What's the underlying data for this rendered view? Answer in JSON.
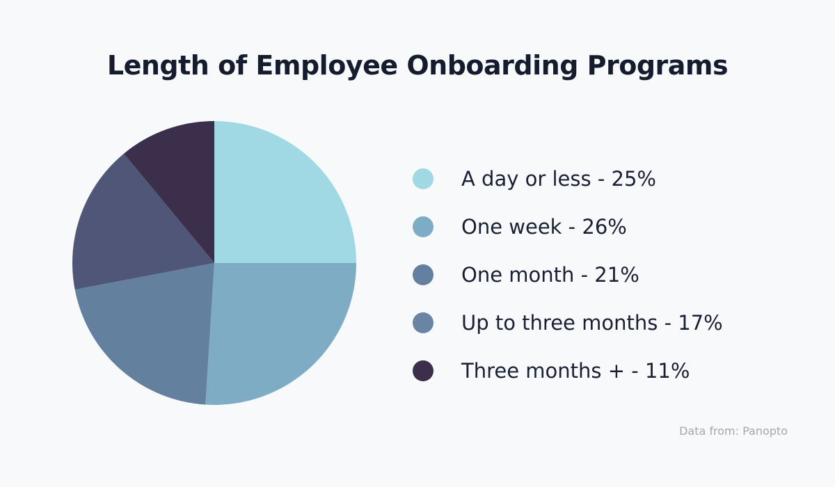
{
  "chart_data": {
    "type": "pie",
    "title": "Length of Employee Onboarding Programs",
    "slices": [
      {
        "label": "A day or less - 25%",
        "category": "A day or less",
        "value": 25,
        "color": "#a0d9e3",
        "legend_color": "#a0d9e3"
      },
      {
        "label": "One week - 26%",
        "category": "One week",
        "value": 26,
        "color": "#7eacc4",
        "legend_color": "#7eacc4"
      },
      {
        "label": "One month - 21%",
        "category": "One month",
        "value": 21,
        "color": "#64809f",
        "legend_color": "#64809f"
      },
      {
        "label": "Up to three months - 17%",
        "category": "Up to three months",
        "value": 17,
        "color": "#4f5677",
        "legend_color": "#6a84a3"
      },
      {
        "label": "Three months + - 11%",
        "category": "Three months +",
        "value": 11,
        "color": "#3b2f4c",
        "legend_color": "#3b2f4c"
      }
    ],
    "start_angle": "top",
    "direction": "clockwise",
    "legend_placement": "right",
    "source": "Data from: Panopto"
  }
}
